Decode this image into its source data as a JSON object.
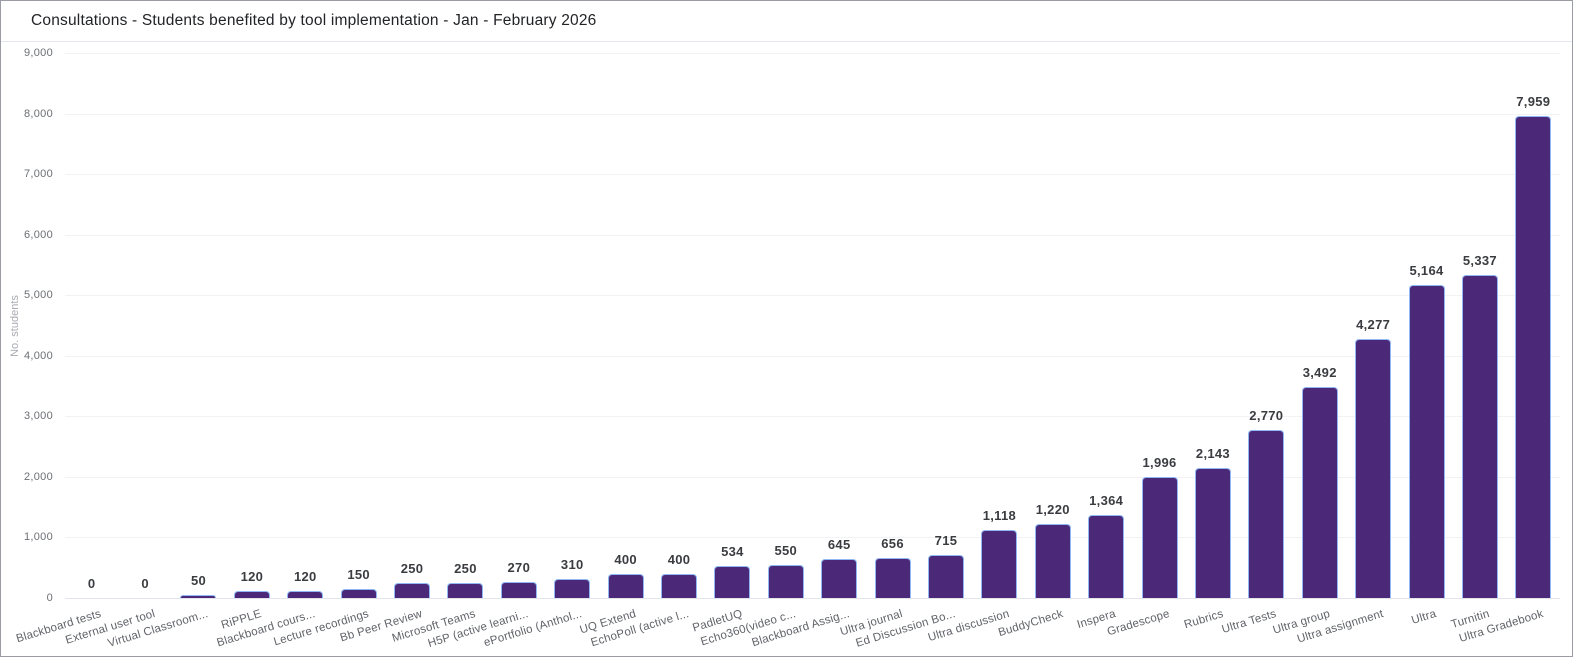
{
  "title": "Consultations - Students benefited by tool implementation - Jan - February 2026",
  "colors": {
    "bar_fill": "#4b2878",
    "bar_border": "#8fb8f5",
    "title_text": "#222326",
    "value_label": "#3a3c40",
    "axis_label": "#606368",
    "axis_title": "#a9abb0",
    "gridline": "#f2f2f4"
  },
  "chart_data": {
    "type": "bar",
    "title": "Consultations - Students benefited by tool implementation - Jan - February 2026",
    "categories": [
      "Blackboard tests",
      "External user tool",
      "Virtual Classroom...",
      "RiPPLE",
      "Blackboard cours...",
      "Lecture recordings",
      "Bb Peer Review",
      "Microsoft Teams",
      "H5P (active learni...",
      "ePortfolio (Anthol...",
      "UQ Extend",
      "EchoPoll (active l...",
      "PadletUQ",
      "Echo360(video c...",
      "Blackboard Assig...",
      "Ultra journal",
      "Ed Discussion Bo...",
      "Ultra discussion",
      "BuddyCheck",
      "Inspera",
      "Gradescope",
      "Rubrics",
      "Ultra Tests",
      "Ultra group",
      "Ultra assignment",
      "Ultra",
      "Turnitin",
      "Ultra Gradebook"
    ],
    "values": [
      0,
      0,
      50,
      120,
      120,
      150,
      250,
      250,
      270,
      310,
      400,
      400,
      534,
      550,
      645,
      656,
      715,
      1118,
      1220,
      1364,
      1996,
      2143,
      2770,
      3492,
      4277,
      5164,
      5337,
      7959
    ],
    "xlabel": "",
    "ylabel": "No. students",
    "ylim": [
      0,
      9000
    ],
    "ytick_step": 1000,
    "yticks": [
      "0",
      "1,000",
      "2,000",
      "3,000",
      "4,000",
      "5,000",
      "6,000",
      "7,000",
      "8,000",
      "9,000"
    ],
    "grid": true,
    "legend": false,
    "data_labels": true,
    "x_label_rotation_deg": -17
  }
}
